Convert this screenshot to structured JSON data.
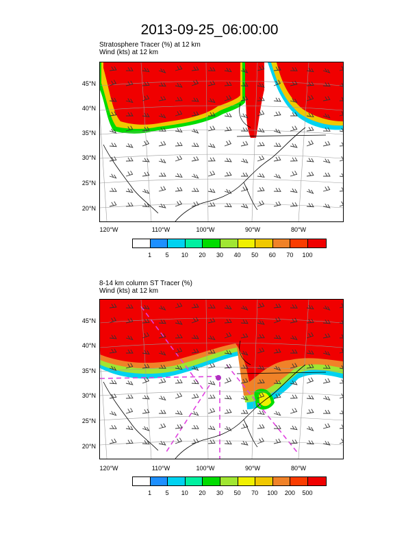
{
  "title": "2013-09-25_06:00:00",
  "panels": [
    {
      "line1": "Stratosphere Tracer   (%)     at   12 km",
      "line2": "Wind   (kts)     at   12 km",
      "colorbar_labels": [
        "1",
        "5",
        "10",
        "20",
        "30",
        "40",
        "50",
        "60",
        "70",
        "100"
      ]
    },
    {
      "line1": "8-14 km column ST Tracer   (%)",
      "line2": "Wind   (kts)     at   12 km",
      "colorbar_labels": [
        "1",
        "5",
        "10",
        "20",
        "30",
        "50",
        "70",
        "100",
        "200",
        "500"
      ]
    }
  ],
  "lat_labels": [
    "45°N",
    "40°N",
    "35°N",
    "30°N",
    "25°N",
    "20°N"
  ],
  "lon_labels": [
    "120°W",
    "110°W",
    "100°W",
    "90°W",
    "80°W"
  ],
  "colors": [
    "#ffffff",
    "#1e90ff",
    "#00d2f0",
    "#00f0a0",
    "#00dc00",
    "#a0e632",
    "#f0f000",
    "#f0c800",
    "#f08228",
    "#fa3c00",
    "#f00000"
  ]
}
